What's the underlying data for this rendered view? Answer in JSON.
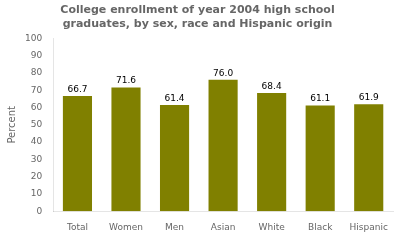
{
  "chart_data": {
    "type": "bar",
    "title": "College enrollment of year 2004 high school\ngraduates, by sex, race and Hispanic origin",
    "ylabel": "Percent",
    "categories": [
      "Total",
      "Women",
      "Men",
      "Asian",
      "White",
      "Black",
      "Hispanic"
    ],
    "values": [
      66.7,
      71.6,
      61.4,
      76.0,
      68.4,
      61.1,
      61.9
    ],
    "value_labels": [
      "66.7",
      "71.6",
      "61.4",
      "76.0",
      "68.4",
      "61.1",
      "61.9"
    ],
    "color": "#808000",
    "ylim": [
      0,
      100
    ],
    "yticks": [
      0,
      10,
      20,
      30,
      40,
      50,
      60,
      70,
      80,
      90,
      100
    ],
    "grid": false,
    "data_labels": true
  }
}
